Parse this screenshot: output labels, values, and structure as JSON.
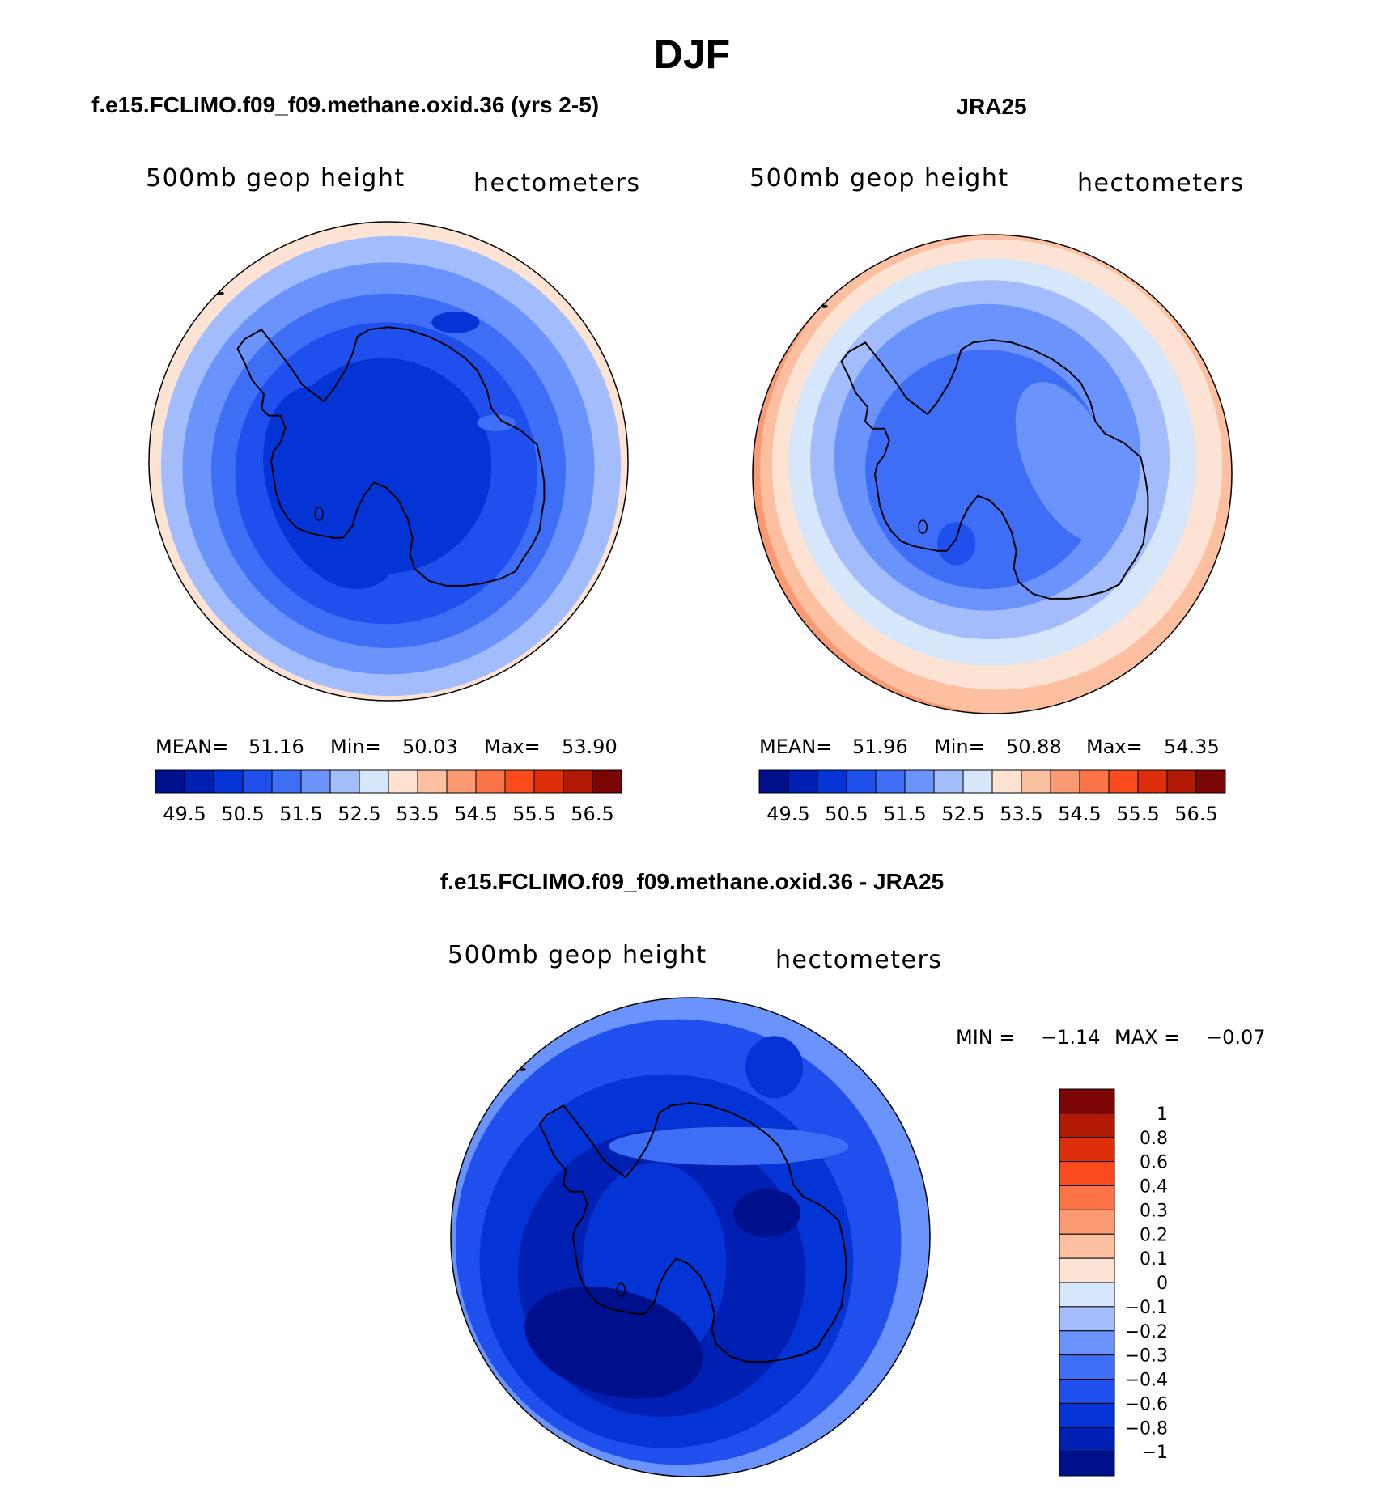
{
  "figure": {
    "title": "DJF",
    "diff_title": "f.e15.FCLIMO.f09_f09.methane.oxid.36 - JRA25"
  },
  "chart_data": [
    {
      "type": "heatmap",
      "projection": "south-polar-stereographic",
      "panel_title": "f.e15.FCLIMO.f09_f09.methane.oxid.36 (yrs 2-5)",
      "variable": "500mb geop height",
      "units": "hectometers",
      "stats": {
        "mean_label": "MEAN=",
        "mean": "51.16",
        "min_label": "Min=",
        "min": "50.03",
        "max_label": "Max=",
        "max": "53.90"
      },
      "levels": [
        "49.5",
        "50.5",
        "51.5",
        "52.5",
        "53.5",
        "54.5",
        "55.5",
        "56.5"
      ],
      "colorbar_colors": [
        "#000f8c",
        "#0020b4",
        "#0433d6",
        "#1f4fec",
        "#3d6ef5",
        "#6a93fb",
        "#a3bdfc",
        "#d6e6fb",
        "#fce3d3",
        "#fcbfa0",
        "#fa9972",
        "#fb7346",
        "#fa4b1e",
        "#df2e0a",
        "#b21a05",
        "#7c0505"
      ],
      "contour_colors": [
        "#a3bdfc",
        "#6a93fb",
        "#3d6ef5",
        "#1f4fec",
        "#0433d6"
      ],
      "outer_color": "#fce3d3",
      "rings": [
        {
          "cx": 0.01,
          "cy": 0.02,
          "r": 0.96
        },
        {
          "cx": 0.0,
          "cy": 0.03,
          "r": 0.86
        },
        {
          "cx": 0.0,
          "cy": 0.04,
          "r": 0.74
        },
        {
          "cx": -0.01,
          "cy": 0.05,
          "r": 0.63
        },
        {
          "cx": -0.02,
          "cy": 0.02,
          "r": 0.45
        }
      ],
      "blobs": [
        {
          "cx": -0.22,
          "cy": 0.11,
          "rx": 0.28,
          "ry": 0.44,
          "rot": -20,
          "color": "#0433d6"
        },
        {
          "cx": 0.28,
          "cy": -0.58,
          "rx": 0.1,
          "ry": 0.045,
          "rot": 0,
          "color": "#0433d6"
        },
        {
          "cx": 0.45,
          "cy": -0.16,
          "rx": 0.08,
          "ry": 0.035,
          "rot": 0,
          "color": "#3d6ef5"
        }
      ]
    },
    {
      "type": "heatmap",
      "projection": "south-polar-stereographic",
      "panel_title": "JRA25",
      "variable": "500mb geop height",
      "units": "hectometers",
      "stats": {
        "mean_label": "MEAN=",
        "mean": "51.96",
        "min_label": "Min=",
        "min": "50.88",
        "max_label": "Max=",
        "max": "54.35"
      },
      "levels": [
        "49.5",
        "50.5",
        "51.5",
        "52.5",
        "53.5",
        "54.5",
        "55.5",
        "56.5"
      ],
      "colorbar_colors": [
        "#000f8c",
        "#0020b4",
        "#0433d6",
        "#1f4fec",
        "#3d6ef5",
        "#6a93fb",
        "#a3bdfc",
        "#d6e6fb",
        "#fce3d3",
        "#fcbfa0",
        "#fa9972",
        "#fb7346",
        "#fa4b1e",
        "#df2e0a",
        "#b21a05",
        "#7c0505"
      ],
      "contour_colors": [
        "#fcbfa0",
        "#fce3d3",
        "#d6e6fb",
        "#a3bdfc",
        "#6a93fb",
        "#3d6ef5"
      ],
      "outer_color": "#fa9972",
      "rings": [
        {
          "cx": 0.05,
          "cy": -0.02,
          "r": 1.02
        },
        {
          "cx": 0.02,
          "cy": -0.04,
          "r": 0.94
        },
        {
          "cx": 0.0,
          "cy": -0.05,
          "r": 0.85
        },
        {
          "cx": -0.01,
          "cy": -0.06,
          "r": 0.75
        },
        {
          "cx": -0.02,
          "cy": -0.07,
          "r": 0.64
        },
        {
          "cx": -0.03,
          "cy": -0.02,
          "r": 0.5
        }
      ],
      "blobs": [
        {
          "cx": 0.32,
          "cy": -0.05,
          "rx": 0.18,
          "ry": 0.36,
          "rot": -25,
          "color": "#6a93fb"
        },
        {
          "cx": -0.15,
          "cy": 0.29,
          "rx": 0.08,
          "ry": 0.09,
          "rot": 0,
          "color": "#1f4fec"
        }
      ]
    },
    {
      "type": "heatmap",
      "projection": "south-polar-stereographic",
      "variable": "500mb geop height",
      "units": "hectometers",
      "stats": {
        "min_label": "MIN =",
        "min": "−1.14",
        "max_label": "MAX =",
        "max": "−0.07"
      },
      "levels": [
        "1",
        "0.8",
        "0.6",
        "0.4",
        "0.3",
        "0.2",
        "0.1",
        "0",
        "−0.1",
        "−0.2",
        "−0.3",
        "−0.4",
        "−0.6",
        "−0.8",
        "−1"
      ],
      "colorbar_colors": [
        "#7c0505",
        "#b21a05",
        "#df2e0a",
        "#fa4b1e",
        "#fb7346",
        "#fa9972",
        "#fcbfa0",
        "#fce3d3",
        "#d6e6fb",
        "#a3bdfc",
        "#6a93fb",
        "#3d6ef5",
        "#1f4fec",
        "#0433d6",
        "#0020b4",
        "#000f8c"
      ],
      "contour_colors": [
        "#1f4fec",
        "#0433d6",
        "#0020b4"
      ],
      "outer_color": "#6a93fb",
      "rings": [
        {
          "cx": -0.05,
          "cy": 0.02,
          "r": 0.93
        },
        {
          "cx": -0.1,
          "cy": 0.1,
          "r": 0.78
        },
        {
          "cx": -0.12,
          "cy": 0.15,
          "r": 0.6
        }
      ],
      "blobs": [
        {
          "cx": 0.16,
          "cy": -0.38,
          "rx": 0.5,
          "ry": 0.08,
          "rot": 0,
          "color": "#3d6ef5"
        },
        {
          "cx": 0.35,
          "cy": -0.71,
          "rx": 0.12,
          "ry": 0.13,
          "rot": 0,
          "color": "#0433d6"
        },
        {
          "cx": -0.15,
          "cy": 0.11,
          "rx": 0.3,
          "ry": 0.42,
          "rot": 0,
          "color": "#0433d6"
        },
        {
          "cx": -0.32,
          "cy": 0.44,
          "rx": 0.38,
          "ry": 0.22,
          "rot": 15,
          "color": "#000f8c"
        },
        {
          "cx": 0.32,
          "cy": -0.1,
          "rx": 0.14,
          "ry": 0.1,
          "rot": 0,
          "color": "#000f8c"
        }
      ]
    }
  ]
}
